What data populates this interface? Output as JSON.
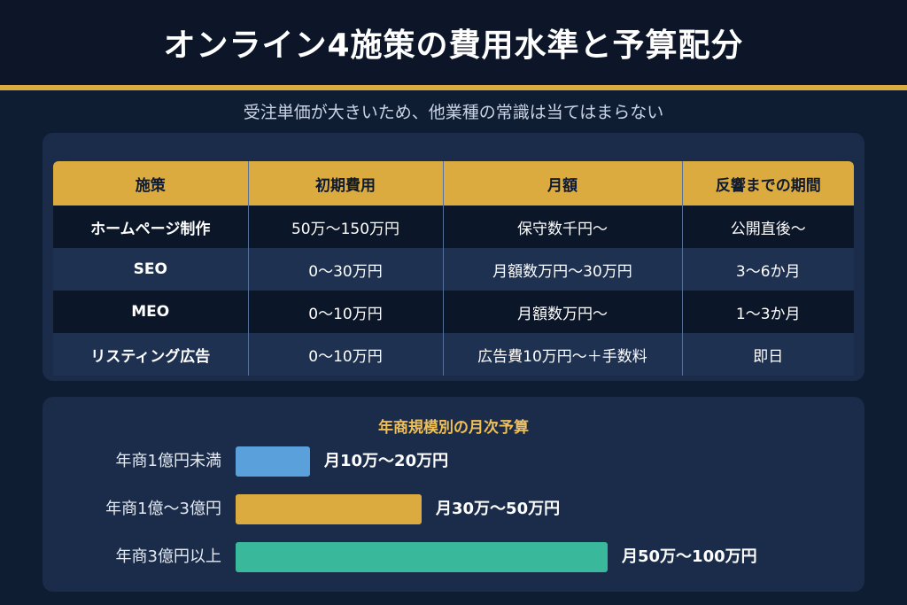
{
  "title": "オンライン4施策の費用水準と予算配分",
  "subtitle": "受注単価が大きいため、他業種の常識は当てはまらない",
  "colors": {
    "background": "#0f1d33",
    "header": "#0c1628",
    "accent_gold": "#dbab3f",
    "panel": "#1a2c4a"
  },
  "table": {
    "headers": [
      "施策",
      "初期費用",
      "月額",
      "反響までの期間"
    ],
    "rows": [
      [
        "ホームページ制作",
        "50万〜150万円",
        "保守数千円〜",
        "公開直後〜"
      ],
      [
        "SEO",
        "0〜30万円",
        "月額数万円〜30万円",
        "3〜6か月"
      ],
      [
        "MEO",
        "0〜10万円",
        "月額数万円〜",
        "1〜3か月"
      ],
      [
        "リスティング広告",
        "0〜10万円",
        "広告費10万円〜＋手数料",
        "即日"
      ]
    ]
  },
  "budget": {
    "title": "年商規模別の月次予算",
    "rows": [
      {
        "label": "年商1億円未満",
        "value_text": "月10万〜20万円",
        "level": 0.2,
        "color": "#5aa0da"
      },
      {
        "label": "年商1億〜3億円",
        "value_text": "月30万〜50万円",
        "level": 0.5,
        "color": "#dbab3f"
      },
      {
        "label": "年商3億円以上",
        "value_text": "月50万〜100万円",
        "level": 1.0,
        "color": "#3ab89c"
      }
    ]
  }
}
